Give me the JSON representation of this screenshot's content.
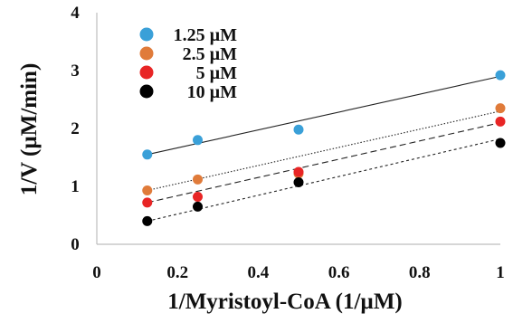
{
  "chart_data": {
    "type": "scatter",
    "title": "",
    "xlabel": "1/Myristoyl-CoA (1/µM)",
    "ylabel": "1/V (µM/min)",
    "xlim": [
      0,
      1
    ],
    "ylim": [
      0,
      4
    ],
    "xticks": [
      0,
      0.2,
      0.4,
      0.6,
      0.8,
      1
    ],
    "xtick_labels": [
      "0",
      "0.2",
      "0.4",
      "0.6",
      "0.8",
      "1"
    ],
    "yticks": [
      0,
      1,
      2,
      3,
      4
    ],
    "ytick_labels": [
      "0",
      "1",
      "2",
      "3",
      "4"
    ],
    "grid": false,
    "legend_position": "top-left",
    "series": [
      {
        "name": "1.25 µM",
        "color": "#3aa0d8",
        "line_style": "solid",
        "fit": [
          0.125,
          1.55,
          1.0,
          2.9
        ],
        "x": [
          0.125,
          0.25,
          0.5,
          1.0
        ],
        "y": [
          1.55,
          1.8,
          1.98,
          2.92
        ]
      },
      {
        "name": "2.5 µM",
        "color": "#e07b3a",
        "line_style": "dotted",
        "fit": [
          0.125,
          0.93,
          1.0,
          2.3
        ],
        "x": [
          0.125,
          0.25,
          0.5,
          1.0
        ],
        "y": [
          0.93,
          1.12,
          1.22,
          2.35
        ]
      },
      {
        "name": "5 µM",
        "color": "#e82525",
        "line_style": "dashed",
        "fit": [
          0.125,
          0.72,
          1.0,
          2.1
        ],
        "x": [
          0.125,
          0.25,
          0.5,
          1.0
        ],
        "y": [
          0.72,
          0.82,
          1.25,
          2.12
        ]
      },
      {
        "name": "10 µM",
        "color": "#000000",
        "line_style": "short-dashed",
        "fit": [
          0.125,
          0.4,
          1.0,
          1.82
        ],
        "x": [
          0.125,
          0.25,
          0.5,
          1.0
        ],
        "y": [
          0.4,
          0.65,
          1.07,
          1.75
        ]
      }
    ]
  }
}
